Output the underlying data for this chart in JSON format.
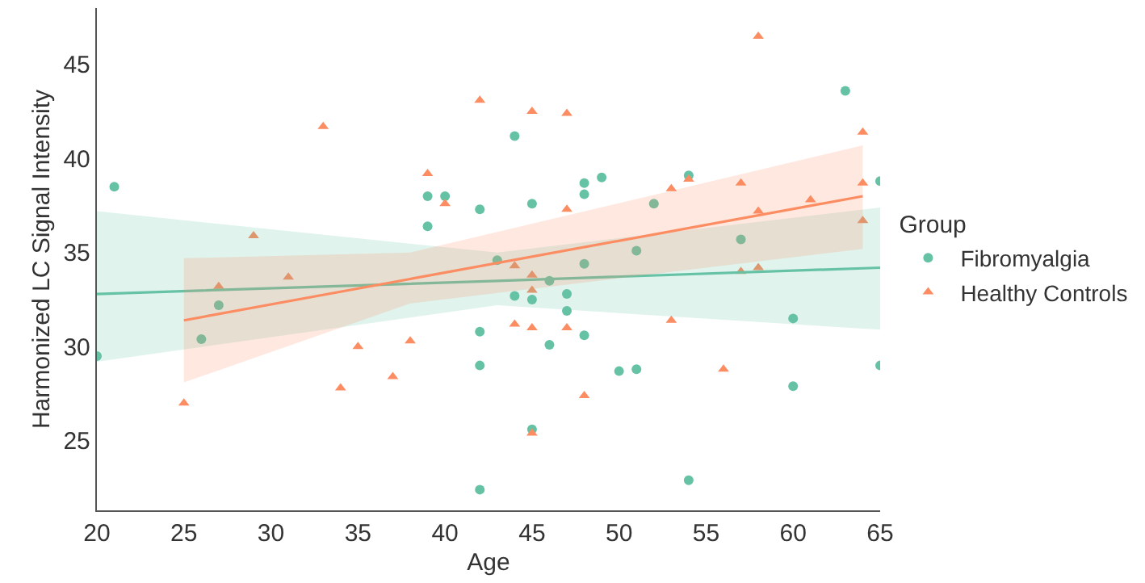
{
  "chart_data": {
    "type": "scatter",
    "xlabel": "Age",
    "ylabel": "Harmonized LC Signal Intensity",
    "legend_title": "Group",
    "legend": "right",
    "grid": false,
    "xlim": [
      20,
      65
    ],
    "xticks": [
      20,
      25,
      30,
      35,
      40,
      45,
      50,
      55,
      60,
      65
    ],
    "ylim": [
      21.3,
      48
    ],
    "yticks": [
      25,
      30,
      35,
      40,
      45
    ],
    "series": [
      {
        "name": "Fibromyalgia",
        "color": "#66c2a5",
        "marker": "circle",
        "x": [
          20,
          21,
          26,
          27,
          39,
          39,
          40,
          42,
          42,
          42,
          42,
          43,
          44,
          44,
          45,
          45,
          45,
          46,
          46,
          47,
          47,
          48,
          48,
          48,
          48,
          49,
          50,
          51,
          51,
          52,
          54,
          54,
          57,
          60,
          60,
          63,
          65,
          65
        ],
        "values": [
          29.5,
          38.5,
          30.4,
          32.2,
          38,
          36.4,
          38,
          37.3,
          30.8,
          29,
          22.4,
          34.6,
          41.2,
          32.7,
          37.6,
          32.5,
          25.6,
          30.1,
          33.5,
          32.8,
          31.9,
          38.7,
          38.1,
          34.4,
          30.6,
          39,
          28.7,
          35.1,
          28.8,
          37.6,
          39.1,
          22.9,
          35.7,
          31.5,
          27.9,
          43.6,
          38.8,
          29
        ]
      },
      {
        "name": "Healthy Controls",
        "color": "#fc8d62",
        "marker": "triangle",
        "x": [
          25,
          27,
          29,
          31,
          33,
          34,
          35,
          37,
          38,
          39,
          40,
          42,
          44,
          44,
          45,
          45,
          45,
          45,
          45,
          47,
          47,
          47,
          48,
          53,
          53,
          54,
          56,
          57,
          57,
          58,
          58,
          58,
          61,
          64,
          64,
          64
        ],
        "values": [
          27,
          33.2,
          35.9,
          33.7,
          41.7,
          27.8,
          30,
          28.4,
          30.3,
          39.2,
          37.6,
          43.1,
          34.3,
          31.2,
          42.5,
          33.8,
          33,
          31,
          25.4,
          42.4,
          37.3,
          31,
          27.4,
          38.4,
          31.4,
          38.9,
          28.8,
          38.7,
          34,
          46.5,
          37.2,
          34.2,
          37.8,
          41.4,
          38.7,
          36.7
        ]
      },
      {
        "type": "line",
        "color": "#66c2a5",
        "x": [
          20,
          43,
          65
        ],
        "values": [
          32.8,
          33.5,
          34.2
        ],
        "lower": [
          29.2,
          32.2,
          30.9
        ],
        "upper": [
          37.2,
          35,
          37.4
        ]
      },
      {
        "type": "line",
        "color": "#fc8d62",
        "x": [
          25,
          38,
          64
        ],
        "values": [
          31.4,
          33.6,
          38
        ],
        "lower": [
          28.1,
          32.3,
          35.2
        ],
        "upper": [
          34.7,
          35,
          40.7
        ]
      }
    ]
  }
}
